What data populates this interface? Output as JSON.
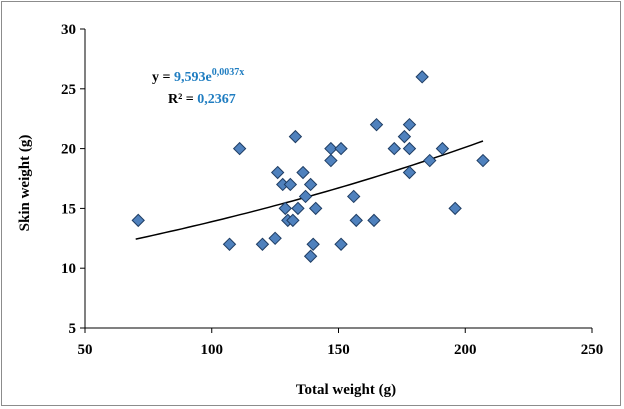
{
  "chart_data": {
    "type": "scatter",
    "xlabel": "Total weight (g)",
    "ylabel": "Skin  weight (g)",
    "xlim": [
      50,
      250
    ],
    "ylim": [
      5,
      30
    ],
    "x_ticks": [
      "50",
      "100",
      "150",
      "200",
      "250"
    ],
    "y_ticks": [
      "5",
      "10",
      "15",
      "20",
      "25",
      "30"
    ],
    "grid": false,
    "marker": "diamond",
    "marker_color": "#4f81bd",
    "accent_color": "#1f7dc1",
    "points": [
      {
        "x": 71,
        "y": 14
      },
      {
        "x": 107,
        "y": 12
      },
      {
        "x": 111,
        "y": 20
      },
      {
        "x": 120,
        "y": 12
      },
      {
        "x": 125,
        "y": 12.5
      },
      {
        "x": 126,
        "y": 18
      },
      {
        "x": 128,
        "y": 17
      },
      {
        "x": 129,
        "y": 15
      },
      {
        "x": 130,
        "y": 14
      },
      {
        "x": 131,
        "y": 17
      },
      {
        "x": 132,
        "y": 14
      },
      {
        "x": 133,
        "y": 21
      },
      {
        "x": 134,
        "y": 15
      },
      {
        "x": 136,
        "y": 18
      },
      {
        "x": 137,
        "y": 16
      },
      {
        "x": 139,
        "y": 17
      },
      {
        "x": 139,
        "y": 11
      },
      {
        "x": 140,
        "y": 12
      },
      {
        "x": 141,
        "y": 15
      },
      {
        "x": 147,
        "y": 19
      },
      {
        "x": 147,
        "y": 20
      },
      {
        "x": 151,
        "y": 20
      },
      {
        "x": 151,
        "y": 12
      },
      {
        "x": 156,
        "y": 16
      },
      {
        "x": 157,
        "y": 14
      },
      {
        "x": 164,
        "y": 14
      },
      {
        "x": 165,
        "y": 22
      },
      {
        "x": 172,
        "y": 20
      },
      {
        "x": 176,
        "y": 21
      },
      {
        "x": 178,
        "y": 22
      },
      {
        "x": 178,
        "y": 20
      },
      {
        "x": 178,
        "y": 18
      },
      {
        "x": 183,
        "y": 26
      },
      {
        "x": 186,
        "y": 19
      },
      {
        "x": 191,
        "y": 20
      },
      {
        "x": 196,
        "y": 15
      },
      {
        "x": 207,
        "y": 19
      }
    ],
    "trendline": {
      "type": "exponential",
      "a": 9.593,
      "b": 0.0037,
      "x_range": [
        70,
        207
      ],
      "equation_prefix": "y = ",
      "equation_value": "9,593e",
      "equation_exponent": "0,0037x",
      "r2_prefix": "R² = ",
      "r2_value": "0,2367"
    }
  }
}
